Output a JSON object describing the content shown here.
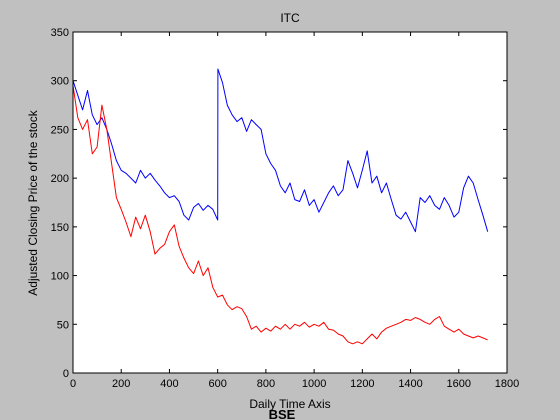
{
  "chart_data": {
    "type": "line",
    "title": "ITC",
    "xlabel": "Daily Time Axis",
    "ylabel": "Adjusted Closing Price of the stock",
    "caption": "BSE",
    "xlim": [
      0,
      1800
    ],
    "ylim": [
      0,
      350
    ],
    "xticks": [
      0,
      200,
      400,
      600,
      800,
      1000,
      1200,
      1400,
      1600,
      1800
    ],
    "yticks": [
      0,
      50,
      100,
      150,
      200,
      250,
      300,
      350
    ],
    "grid": false,
    "colors": {
      "figure_bg": "#c0c0c0",
      "axes_bg": "#ffffff"
    },
    "series": [
      {
        "color": "#0000ff",
        "points": [
          [
            0,
            300
          ],
          [
            20,
            285
          ],
          [
            40,
            270
          ],
          [
            60,
            290
          ],
          [
            80,
            265
          ],
          [
            100,
            255
          ],
          [
            120,
            262
          ],
          [
            140,
            250
          ],
          [
            160,
            235
          ],
          [
            180,
            218
          ],
          [
            200,
            208
          ],
          [
            220,
            205
          ],
          [
            240,
            200
          ],
          [
            260,
            195
          ],
          [
            280,
            208
          ],
          [
            300,
            200
          ],
          [
            320,
            205
          ],
          [
            340,
            198
          ],
          [
            360,
            192
          ],
          [
            380,
            185
          ],
          [
            400,
            180
          ],
          [
            420,
            182
          ],
          [
            440,
            176
          ],
          [
            460,
            162
          ],
          [
            480,
            157
          ],
          [
            500,
            170
          ],
          [
            520,
            174
          ],
          [
            540,
            167
          ],
          [
            560,
            172
          ],
          [
            580,
            168
          ],
          [
            600,
            157
          ],
          [
            601,
            312
          ],
          [
            620,
            298
          ],
          [
            640,
            275
          ],
          [
            660,
            265
          ],
          [
            680,
            258
          ],
          [
            700,
            262
          ],
          [
            720,
            248
          ],
          [
            740,
            260
          ],
          [
            760,
            255
          ],
          [
            780,
            250
          ],
          [
            800,
            225
          ],
          [
            820,
            215
          ],
          [
            840,
            208
          ],
          [
            860,
            192
          ],
          [
            880,
            185
          ],
          [
            900,
            195
          ],
          [
            920,
            178
          ],
          [
            940,
            176
          ],
          [
            960,
            188
          ],
          [
            980,
            172
          ],
          [
            1000,
            178
          ],
          [
            1020,
            165
          ],
          [
            1040,
            175
          ],
          [
            1060,
            185
          ],
          [
            1080,
            192
          ],
          [
            1100,
            182
          ],
          [
            1120,
            188
          ],
          [
            1140,
            218
          ],
          [
            1160,
            205
          ],
          [
            1180,
            190
          ],
          [
            1200,
            208
          ],
          [
            1220,
            228
          ],
          [
            1240,
            195
          ],
          [
            1260,
            202
          ],
          [
            1280,
            185
          ],
          [
            1300,
            195
          ],
          [
            1320,
            178
          ],
          [
            1340,
            162
          ],
          [
            1360,
            158
          ],
          [
            1380,
            165
          ],
          [
            1400,
            155
          ],
          [
            1420,
            145
          ],
          [
            1440,
            180
          ],
          [
            1460,
            175
          ],
          [
            1480,
            182
          ],
          [
            1500,
            172
          ],
          [
            1520,
            168
          ],
          [
            1540,
            180
          ],
          [
            1560,
            172
          ],
          [
            1580,
            160
          ],
          [
            1600,
            165
          ],
          [
            1620,
            190
          ],
          [
            1640,
            202
          ],
          [
            1660,
            195
          ],
          [
            1680,
            178
          ],
          [
            1700,
            162
          ],
          [
            1720,
            145
          ]
        ]
      },
      {
        "color": "#ff0000",
        "points": [
          [
            0,
            295
          ],
          [
            20,
            262
          ],
          [
            40,
            250
          ],
          [
            60,
            260
          ],
          [
            80,
            225
          ],
          [
            100,
            232
          ],
          [
            120,
            275
          ],
          [
            140,
            250
          ],
          [
            160,
            215
          ],
          [
            180,
            180
          ],
          [
            200,
            168
          ],
          [
            220,
            155
          ],
          [
            240,
            140
          ],
          [
            260,
            160
          ],
          [
            280,
            148
          ],
          [
            300,
            162
          ],
          [
            320,
            145
          ],
          [
            340,
            122
          ],
          [
            360,
            128
          ],
          [
            380,
            132
          ],
          [
            400,
            145
          ],
          [
            420,
            152
          ],
          [
            440,
            130
          ],
          [
            460,
            118
          ],
          [
            480,
            108
          ],
          [
            500,
            102
          ],
          [
            520,
            115
          ],
          [
            540,
            100
          ],
          [
            560,
            108
          ],
          [
            580,
            88
          ],
          [
            600,
            78
          ],
          [
            620,
            80
          ],
          [
            640,
            70
          ],
          [
            660,
            65
          ],
          [
            680,
            68
          ],
          [
            700,
            66
          ],
          [
            720,
            58
          ],
          [
            740,
            45
          ],
          [
            760,
            48
          ],
          [
            780,
            42
          ],
          [
            800,
            46
          ],
          [
            820,
            43
          ],
          [
            840,
            48
          ],
          [
            860,
            45
          ],
          [
            880,
            50
          ],
          [
            900,
            45
          ],
          [
            920,
            50
          ],
          [
            940,
            48
          ],
          [
            960,
            52
          ],
          [
            980,
            47
          ],
          [
            1000,
            50
          ],
          [
            1020,
            48
          ],
          [
            1040,
            52
          ],
          [
            1060,
            45
          ],
          [
            1080,
            44
          ],
          [
            1100,
            40
          ],
          [
            1120,
            38
          ],
          [
            1140,
            32
          ],
          [
            1160,
            30
          ],
          [
            1180,
            32
          ],
          [
            1200,
            30
          ],
          [
            1220,
            35
          ],
          [
            1240,
            40
          ],
          [
            1260,
            35
          ],
          [
            1280,
            42
          ],
          [
            1300,
            46
          ],
          [
            1320,
            48
          ],
          [
            1340,
            50
          ],
          [
            1360,
            52
          ],
          [
            1380,
            55
          ],
          [
            1400,
            54
          ],
          [
            1420,
            57
          ],
          [
            1440,
            55
          ],
          [
            1460,
            52
          ],
          [
            1480,
            50
          ],
          [
            1500,
            55
          ],
          [
            1520,
            58
          ],
          [
            1540,
            48
          ],
          [
            1560,
            45
          ],
          [
            1580,
            42
          ],
          [
            1600,
            45
          ],
          [
            1620,
            40
          ],
          [
            1640,
            38
          ],
          [
            1660,
            36
          ],
          [
            1680,
            38
          ],
          [
            1700,
            36
          ],
          [
            1720,
            34
          ]
        ]
      }
    ]
  }
}
